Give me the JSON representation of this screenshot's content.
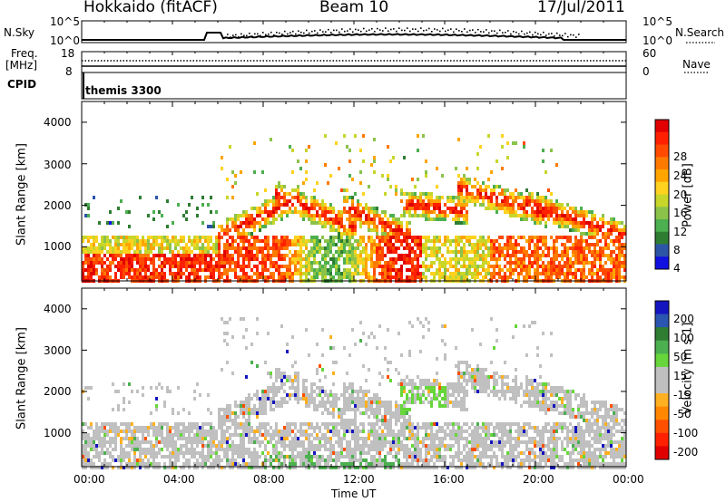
{
  "header": {
    "station": "Hokkaido (fitACF)",
    "beam": "Beam 10",
    "date": "17/Jul/2011"
  },
  "top_panels": {
    "nsky_label": "N.Sky",
    "nsearch_label": "N.Search",
    "nsky_ticks": [
      "10^5",
      "10^0"
    ],
    "nsearch_ticks": [
      "10^5",
      "10^0"
    ],
    "freq_label": "Freq.",
    "freq_unit": "[MHz]",
    "freq_ticks": [
      "18",
      "8"
    ],
    "nave_label": "Nave",
    "nave_ticks": [
      "60",
      "0"
    ],
    "cpid_label": "CPID",
    "cpid_value": "themis 3300"
  },
  "chart_data": [
    {
      "type": "heatmap",
      "name": "power",
      "ylabel": "Slant Range [km]",
      "xlabel": "Time UT",
      "ylim": [
        180,
        4500
      ],
      "y_ticks": [
        "4000",
        "3000",
        "2000",
        "1000"
      ],
      "x_ticks": [
        "00:00",
        "04:00",
        "08:00",
        "12:00",
        "16:00",
        "20:00",
        "00:00"
      ],
      "colorbar": {
        "label": "Power [dB]",
        "ticks": [
          "28",
          "24",
          "20",
          "16",
          "12",
          "8",
          "4"
        ],
        "colors": [
          "#1010e0",
          "#2c55a8",
          "#2e7d32",
          "#4caf50",
          "#8bc34a",
          "#c8d62a",
          "#ffd21f",
          "#ffa500",
          "#ff7a00",
          "#ff4a00",
          "#ff2000",
          "#e00000"
        ]
      }
    },
    {
      "type": "heatmap",
      "name": "velocity",
      "ylabel": "Slant Range [km]",
      "xlabel": "Time UT",
      "ylim": [
        180,
        4500
      ],
      "y_ticks": [
        "4000",
        "3000",
        "2000",
        "1000"
      ],
      "x_ticks": [
        "00:00",
        "04:00",
        "08:00",
        "12:00",
        "16:00",
        "20:00",
        "00:00"
      ],
      "colorbar": {
        "label": "Velocity [m s-1]",
        "ticks": [
          "200",
          "100",
          "50",
          "15",
          "-15",
          "-50",
          "-100",
          "-200"
        ],
        "colors": [
          "#1515c0",
          "#2a55b0",
          "#2e7d32",
          "#4caf50",
          "#66d63a",
          "#c0c0c0",
          "#c0c0c0",
          "#ffb020",
          "#ff8800",
          "#ff5000",
          "#ff2000",
          "#e00000"
        ]
      }
    }
  ],
  "footer": {
    "xlabel": "Time UT"
  }
}
